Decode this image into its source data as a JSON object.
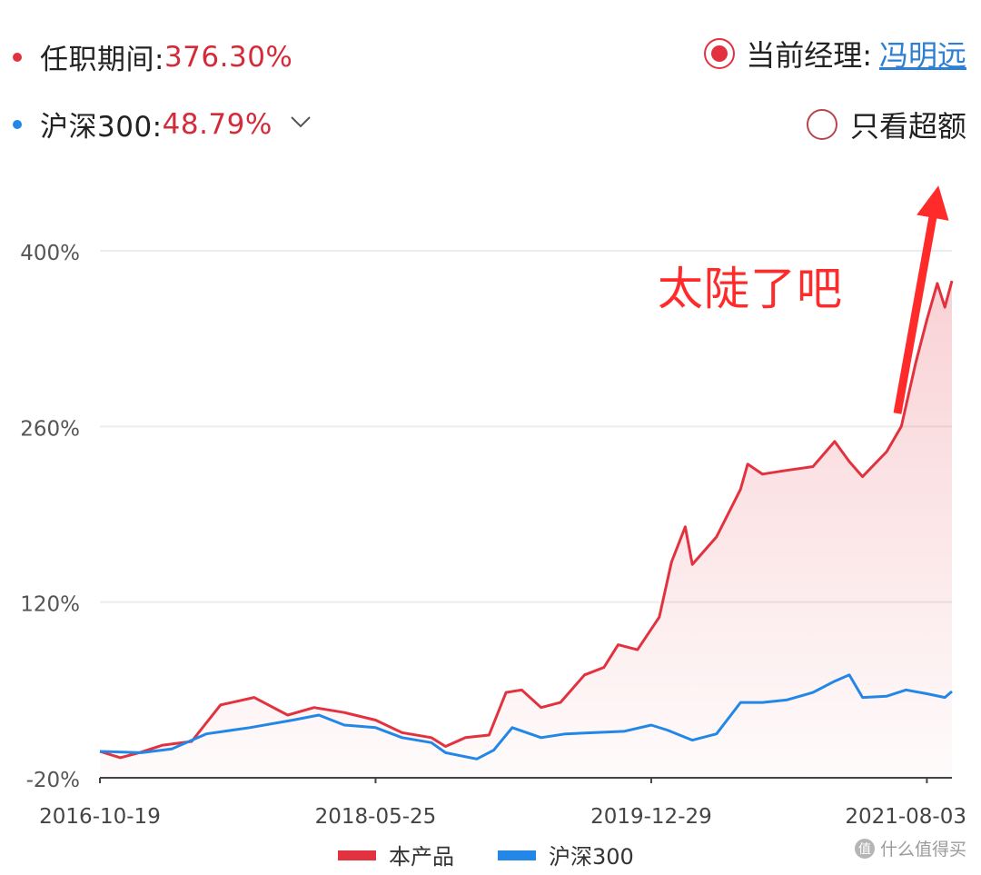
{
  "legend_top": {
    "tenure": {
      "label": "任职期间:",
      "value": "376.30%",
      "dot_color": "#e2323f"
    },
    "index": {
      "label": "沪深300:",
      "value": "48.79%",
      "dot_color": "#2287e6",
      "chevron_icon": "chevron-down-icon"
    }
  },
  "current_manager": {
    "label": "当前经理:",
    "name": "冯明远"
  },
  "excess_only": {
    "label": "只看超额"
  },
  "annotation": {
    "text": "太陡了吧",
    "color": "#ff2a2a"
  },
  "watermark": {
    "text": "什么值得买",
    "icon": "值"
  },
  "chart_data": {
    "type": "line",
    "title": "",
    "xlabel": "",
    "ylabel": "",
    "ylim": [
      -20,
      400
    ],
    "yticks": [
      -20,
      120,
      260,
      400
    ],
    "ytick_labels": [
      "-20%",
      "120%",
      "260%",
      "400%"
    ],
    "x_tick_labels": [
      "2016-10-19",
      "2018-05-25",
      "2019-12-29",
      "2021-08-03"
    ],
    "x_range": [
      "2016-10-19",
      "2021-09-25"
    ],
    "grid": "horizontal",
    "legend_position": "bottom",
    "series": [
      {
        "name": "本产品",
        "color": "#e2323f",
        "fill": true,
        "points": [
          [
            "2016-10-19",
            1
          ],
          [
            "2016-12-01",
            -4
          ],
          [
            "2017-01-10",
            0
          ],
          [
            "2017-03-01",
            6
          ],
          [
            "2017-05-01",
            9
          ],
          [
            "2017-07-01",
            38
          ],
          [
            "2017-09-10",
            44
          ],
          [
            "2017-11-20",
            30
          ],
          [
            "2018-01-15",
            36
          ],
          [
            "2018-03-20",
            32
          ],
          [
            "2018-05-25",
            26
          ],
          [
            "2018-07-20",
            16
          ],
          [
            "2018-09-20",
            12
          ],
          [
            "2018-10-20",
            5
          ],
          [
            "2018-12-01",
            12
          ],
          [
            "2019-01-20",
            14
          ],
          [
            "2019-02-25",
            48
          ],
          [
            "2019-03-30",
            50
          ],
          [
            "2019-05-10",
            36
          ],
          [
            "2019-06-20",
            40
          ],
          [
            "2019-08-10",
            62
          ],
          [
            "2019-09-20",
            68
          ],
          [
            "2019-10-20",
            86
          ],
          [
            "2019-11-30",
            82
          ],
          [
            "2020-01-15",
            108
          ],
          [
            "2020-02-10",
            152
          ],
          [
            "2020-03-10",
            180
          ],
          [
            "2020-03-25",
            150
          ],
          [
            "2020-05-15",
            172
          ],
          [
            "2020-07-05",
            210
          ],
          [
            "2020-07-20",
            230
          ],
          [
            "2020-08-20",
            222
          ],
          [
            "2020-10-10",
            225
          ],
          [
            "2020-12-05",
            228
          ],
          [
            "2021-01-20",
            248
          ],
          [
            "2021-02-20",
            232
          ],
          [
            "2021-03-20",
            220
          ],
          [
            "2021-05-10",
            240
          ],
          [
            "2021-06-10",
            260
          ],
          [
            "2021-07-10",
            310
          ],
          [
            "2021-08-03",
            345
          ],
          [
            "2021-08-25",
            374
          ],
          [
            "2021-09-10",
            355
          ],
          [
            "2021-09-25",
            376
          ]
        ]
      },
      {
        "name": "沪深300",
        "color": "#2287e6",
        "fill": false,
        "points": [
          [
            "2016-10-19",
            1
          ],
          [
            "2017-01-15",
            0
          ],
          [
            "2017-03-20",
            3
          ],
          [
            "2017-06-01",
            15
          ],
          [
            "2017-09-01",
            20
          ],
          [
            "2017-12-01",
            26
          ],
          [
            "2018-01-25",
            30
          ],
          [
            "2018-03-20",
            22
          ],
          [
            "2018-05-25",
            20
          ],
          [
            "2018-07-20",
            12
          ],
          [
            "2018-09-20",
            8
          ],
          [
            "2018-10-20",
            0
          ],
          [
            "2018-12-25",
            -5
          ],
          [
            "2019-01-30",
            2
          ],
          [
            "2019-03-10",
            20
          ],
          [
            "2019-05-10",
            12
          ],
          [
            "2019-07-01",
            15
          ],
          [
            "2019-09-01",
            16
          ],
          [
            "2019-11-01",
            17
          ],
          [
            "2019-12-29",
            22
          ],
          [
            "2020-02-01",
            18
          ],
          [
            "2020-03-25",
            10
          ],
          [
            "2020-05-15",
            15
          ],
          [
            "2020-07-05",
            40
          ],
          [
            "2020-08-20",
            40
          ],
          [
            "2020-10-10",
            42
          ],
          [
            "2020-12-05",
            48
          ],
          [
            "2021-01-20",
            57
          ],
          [
            "2021-02-20",
            62
          ],
          [
            "2021-03-20",
            44
          ],
          [
            "2021-05-10",
            45
          ],
          [
            "2021-06-20",
            50
          ],
          [
            "2021-08-03",
            47
          ],
          [
            "2021-09-10",
            44
          ],
          [
            "2021-09-25",
            48.79
          ]
        ]
      }
    ]
  }
}
